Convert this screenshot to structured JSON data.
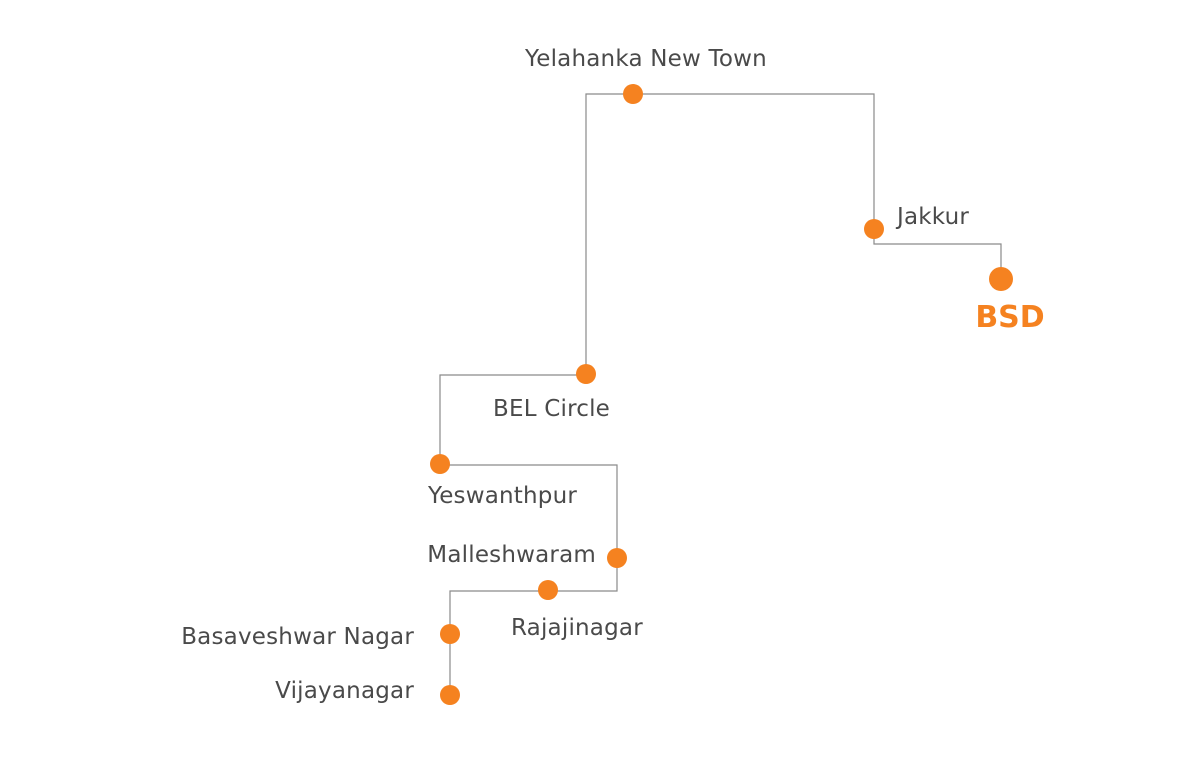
{
  "map": {
    "accent_color": "#f58220",
    "line_color": "#8a8a8a",
    "destination": {
      "label": "BSD"
    },
    "stops": [
      {
        "id": "vijayanagar",
        "label": "Vijayanagar"
      },
      {
        "id": "basaveshwar-nagar",
        "label": "Basaveshwar Nagar"
      },
      {
        "id": "rajajinagar",
        "label": "Rajajinagar"
      },
      {
        "id": "malleshwaram",
        "label": "Malleshwaram"
      },
      {
        "id": "yeswanthpur",
        "label": "Yeswanthpur"
      },
      {
        "id": "bel-circle",
        "label": "BEL Circle"
      },
      {
        "id": "yelahanka-new-town",
        "label": "Yelahanka New Town"
      },
      {
        "id": "jakkur",
        "label": "Jakkur"
      }
    ]
  }
}
